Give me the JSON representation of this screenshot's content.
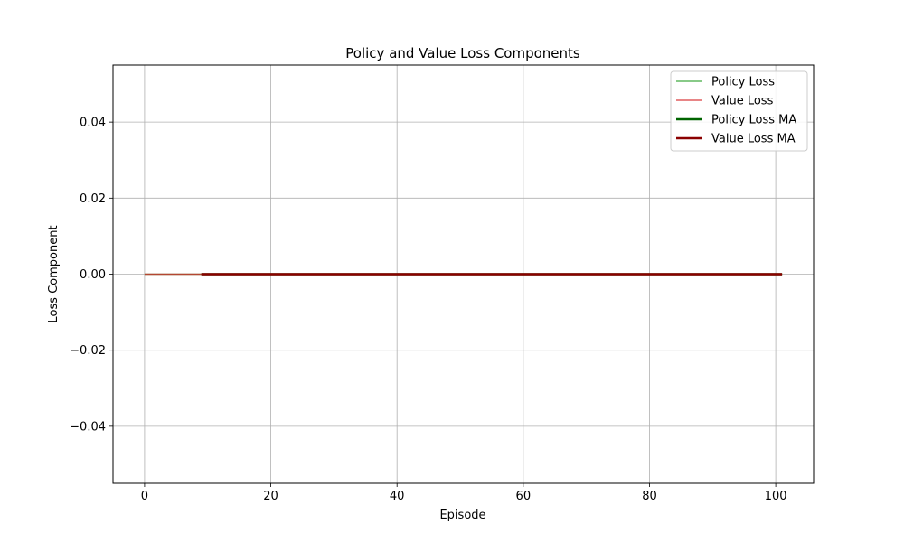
{
  "chart_data": {
    "type": "line",
    "title": "Policy and Value Loss Components",
    "xlabel": "Episode",
    "ylabel": "Loss Component",
    "xlim": [
      -5,
      106
    ],
    "ylim": [
      -0.055,
      0.055
    ],
    "x_ticks": [
      0,
      20,
      40,
      60,
      80,
      100
    ],
    "x_tick_labels": [
      "0",
      "20",
      "40",
      "60",
      "80",
      "100"
    ],
    "y_ticks": [
      -0.04,
      -0.02,
      0.0,
      0.02,
      0.04
    ],
    "y_tick_labels": [
      "−0.04",
      "−0.02",
      "0.00",
      "0.02",
      "0.04"
    ],
    "grid": true,
    "legend_position": "top-right",
    "series": [
      {
        "name": "Policy Loss",
        "color": "#2ca02c",
        "style": "thin",
        "x": [
          0,
          101
        ],
        "y": [
          0.0,
          0.0
        ]
      },
      {
        "name": "Value Loss",
        "color": "#d62728",
        "style": "thin",
        "x": [
          0,
          101
        ],
        "y": [
          0.0,
          0.0
        ]
      },
      {
        "name": "Policy Loss MA",
        "color": "#006400",
        "style": "thick",
        "x": [
          9,
          101
        ],
        "y": [
          0.0,
          0.0
        ]
      },
      {
        "name": "Value Loss MA",
        "color": "#8b0000",
        "style": "thick",
        "x": [
          9,
          101
        ],
        "y": [
          0.0,
          0.0
        ]
      }
    ]
  }
}
